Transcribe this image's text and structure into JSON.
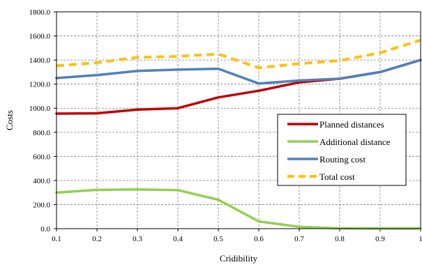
{
  "chart_data": {
    "type": "line",
    "title": "",
    "xlabel": "Cridibility",
    "ylabel": "Costs",
    "x": [
      0.1,
      0.2,
      0.3,
      0.4,
      0.5,
      0.6,
      0.7,
      0.8,
      0.9,
      1.0
    ],
    "x_tick_labels": [
      "0.1",
      "0.2",
      "0.3",
      "0.4",
      "0.5",
      "0.6",
      "0.7",
      "0.8",
      "0.9",
      "1"
    ],
    "xlim": [
      0.1,
      1.0
    ],
    "ylim": [
      0,
      1800
    ],
    "y_ticks": [
      0,
      200,
      400,
      600,
      800,
      1000,
      1200,
      1400,
      1600,
      1800
    ],
    "y_tick_labels": [
      "0.0",
      "200.0",
      "400.0",
      "600.0",
      "800.0",
      "1000.0",
      "1200.0",
      "1400.0",
      "1600.0",
      "1800.0"
    ],
    "grid": true,
    "legend_position": "right",
    "series": [
      {
        "name": "Planned distances",
        "color": "#c00000",
        "dashed": false,
        "values": [
          955,
          958,
          988,
          1000,
          1090,
          1145,
          1215,
          1245,
          1300,
          1400
        ]
      },
      {
        "name": "Additional distance",
        "color": "#92d050",
        "dashed": false,
        "values": [
          300,
          322,
          325,
          320,
          240,
          60,
          15,
          3,
          2,
          2
        ]
      },
      {
        "name": "Routing cost",
        "color": "#4f81bd",
        "dashed": false,
        "values": [
          1250,
          1275,
          1310,
          1320,
          1328,
          1205,
          1230,
          1245,
          1300,
          1400
        ]
      },
      {
        "name": "Total cost",
        "color": "#fcc010",
        "dashed": true,
        "values": [
          1352,
          1378,
          1422,
          1430,
          1450,
          1335,
          1370,
          1395,
          1460,
          1565
        ]
      }
    ]
  }
}
